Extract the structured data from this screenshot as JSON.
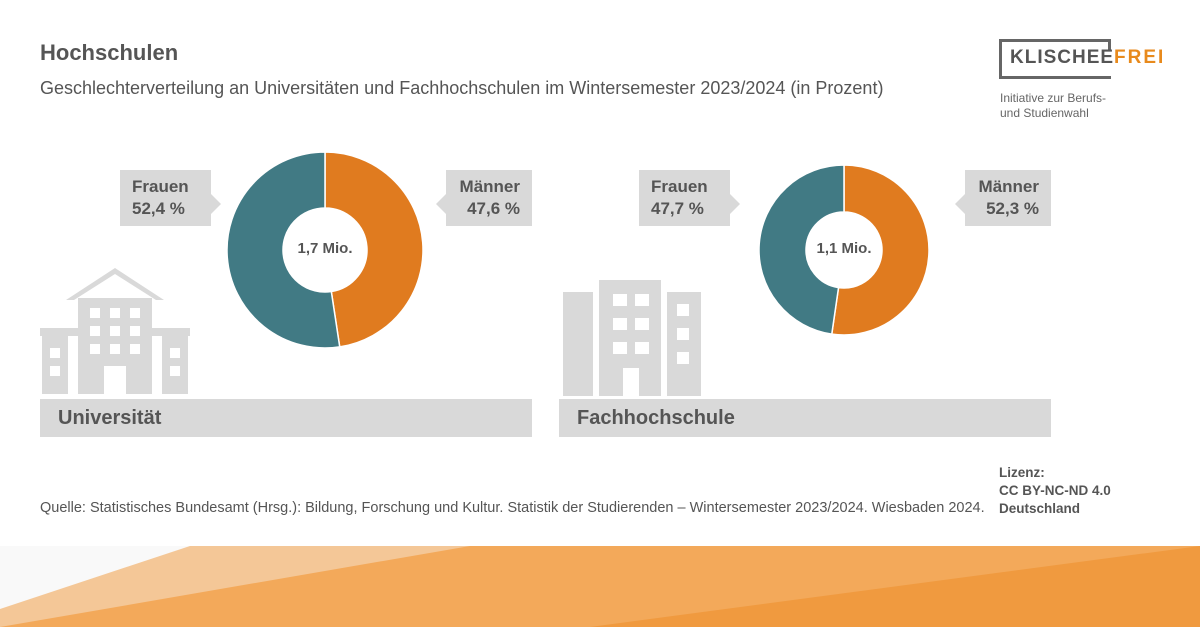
{
  "title": "Hochschulen",
  "subtitle": "Geschlechterverteilung an Universitäten und Fachhochschulen im Wintersemester 2023/2024 (in Prozent)",
  "logo": {
    "word1": "KLISCHEE",
    "word2": "FREI",
    "tagline1": "Initiative zur Berufs-",
    "tagline2": "und Studienwahl"
  },
  "colors": {
    "frauen": "#417a84",
    "maenner": "#e07b1f",
    "box": "#d9d9d9"
  },
  "chart_data": [
    {
      "type": "pie",
      "title": "Universität",
      "center_label": "1,7 Mio.",
      "slices": [
        {
          "name": "Frauen",
          "value": 52.4,
          "label": "52,4 %"
        },
        {
          "name": "Männer",
          "value": 47.6,
          "label": "47,6 %"
        }
      ]
    },
    {
      "type": "pie",
      "title": "Fachhochschule",
      "center_label": "1,1 Mio.",
      "slices": [
        {
          "name": "Frauen",
          "value": 47.7,
          "label": "47,7 %"
        },
        {
          "name": "Männer",
          "value": 52.3,
          "label": "52,3 %"
        }
      ]
    }
  ],
  "source": "Quelle: Statistisches Bundesamt (Hrsg.): Bildung, Forschung und Kultur. Statistik der Studierenden – Wintersemester 2023/2024. Wiesbaden 2024.",
  "license": {
    "l1": "Lizenz:",
    "l2": "CC BY-NC-ND 4.0",
    "l3": "Deutschland"
  }
}
